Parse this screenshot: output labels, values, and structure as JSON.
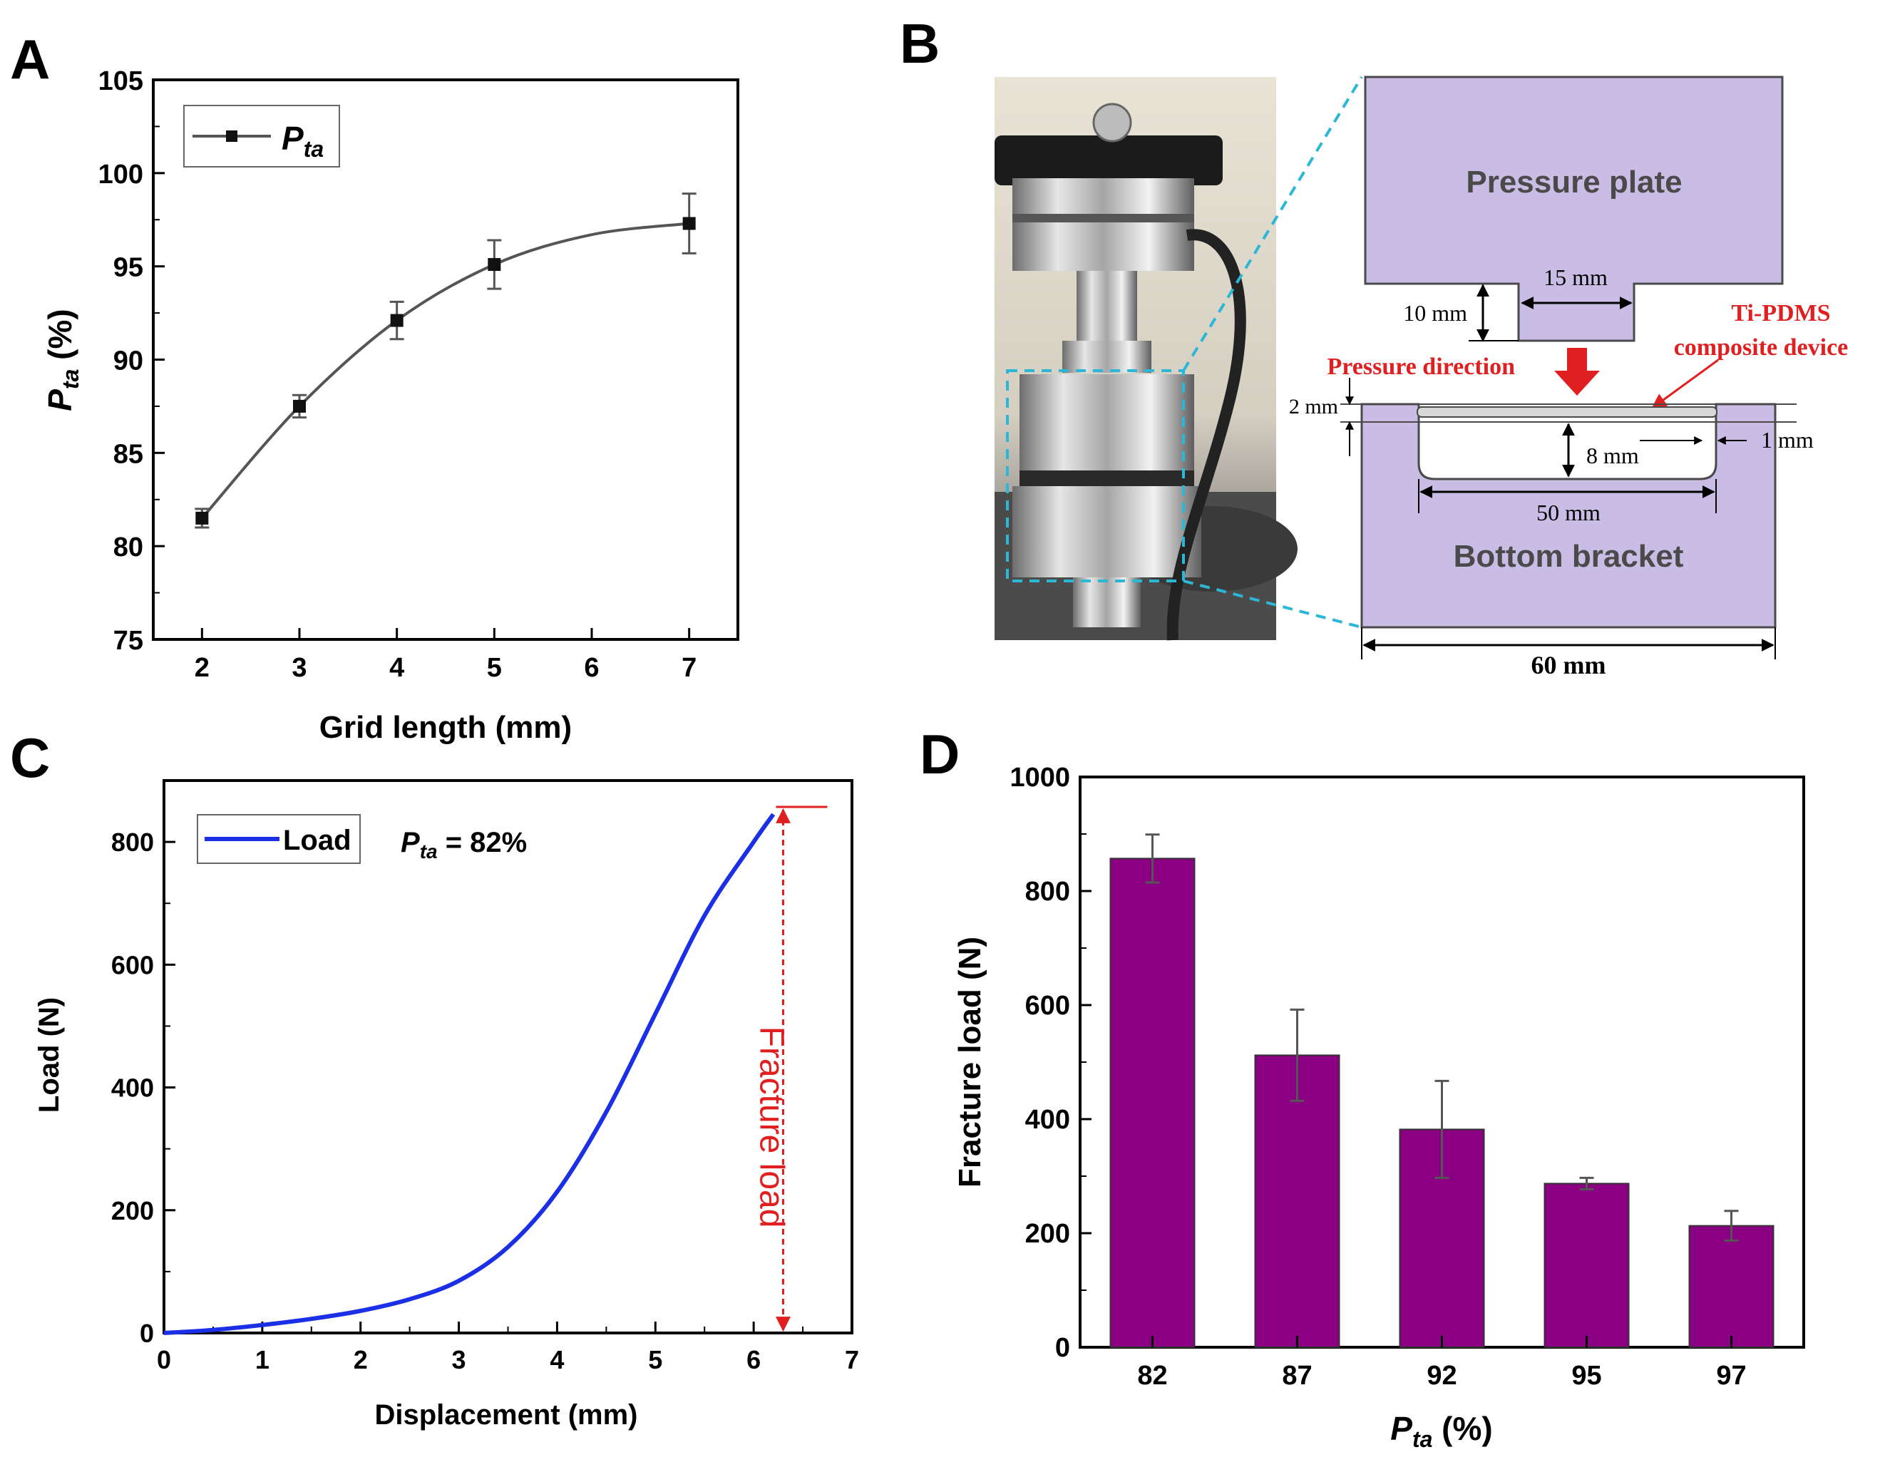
{
  "panel_letters": {
    "a": "A",
    "b": "B",
    "c": "C",
    "d": "D"
  },
  "colors": {
    "panel_a_line": "#555555",
    "panel_a_marker": "#111111",
    "panel_c_line": "#1a2fe6",
    "fracture_red": "#e02020",
    "panel_d_bar": "#8b0083",
    "schematic_fill": "#c9bde6",
    "schematic_stroke": "#4a4a4a",
    "zoom_dash": "#2cb7d6",
    "axis": "#000000"
  },
  "chart_data": [
    {
      "id": "panel-a",
      "type": "line",
      "title": "",
      "xlabel": "Grid length (mm)",
      "ylabel_main": "P",
      "ylabel_sub": "ta",
      "ylabel_tail": " (%)",
      "x": [
        2,
        3,
        4,
        5,
        7
      ],
      "y": [
        81.5,
        87.5,
        92.1,
        95.1,
        97.3
      ],
      "yerr": [
        0.5,
        0.6,
        1.0,
        1.3,
        1.6
      ],
      "curve_extra": {
        "x": [
          6
        ],
        "y": [
          96.7
        ]
      },
      "xlim": [
        1.5,
        7.5
      ],
      "ylim": [
        75,
        105
      ],
      "xticks": [
        "2",
        "3",
        "4",
        "5",
        "6",
        "7"
      ],
      "yticks": [
        "75",
        "80",
        "85",
        "90",
        "95",
        "100",
        "105"
      ],
      "legend": {
        "main": "P",
        "sub": "ta",
        "placement": "top-left"
      }
    },
    {
      "id": "panel-c",
      "type": "line",
      "title": "",
      "xlabel": "Displacement (mm)",
      "ylabel": "Load (N)",
      "x": [
        0,
        0.5,
        1,
        1.5,
        2,
        2.5,
        3,
        3.5,
        4,
        4.5,
        5,
        5.5,
        6,
        6.2
      ],
      "y": [
        0,
        5,
        13,
        23,
        36,
        55,
        85,
        140,
        230,
        360,
        520,
        680,
        800,
        845
      ],
      "xlim": [
        0,
        7
      ],
      "ylim": [
        0,
        900
      ],
      "xticks": [
        "0",
        "1",
        "2",
        "3",
        "4",
        "5",
        "6",
        "7"
      ],
      "yticks": [
        "0",
        "200",
        "400",
        "600",
        "800"
      ],
      "legend": {
        "label": "Load",
        "placement": "top-left"
      },
      "annotation": {
        "main": "P",
        "sub": "ta",
        "tail": " = 82%"
      },
      "fracture_label": "Fracture load",
      "fracture_x": 6.3,
      "fracture_y": 857
    },
    {
      "id": "panel-d",
      "type": "bar",
      "title": "",
      "categories": [
        "82",
        "87",
        "92",
        "95",
        "97"
      ],
      "values": [
        857,
        512,
        382,
        287,
        213
      ],
      "yerr": [
        42,
        80,
        85,
        10,
        26
      ],
      "xlabel_main": "P",
      "xlabel_sub": "ta",
      "xlabel_tail": " (%)",
      "ylabel": "Fracture load (N)",
      "ylim": [
        0,
        1000
      ],
      "yticks": [
        "0",
        "200",
        "400",
        "600",
        "800",
        "1000"
      ]
    }
  ],
  "schematic": {
    "pressure_plate": "Pressure plate",
    "bottom_bracket": "Bottom bracket",
    "dim_15": "15 mm",
    "dim_10": "10 mm",
    "dim_2": "2 mm",
    "dim_8": "8 mm",
    "dim_1": "1 mm",
    "dim_50": "50 mm",
    "dim_60": "60 mm",
    "pressure_direction": "Pressure direction",
    "device_label_1": "Ti-PDMS",
    "device_label_2": "composite device"
  }
}
